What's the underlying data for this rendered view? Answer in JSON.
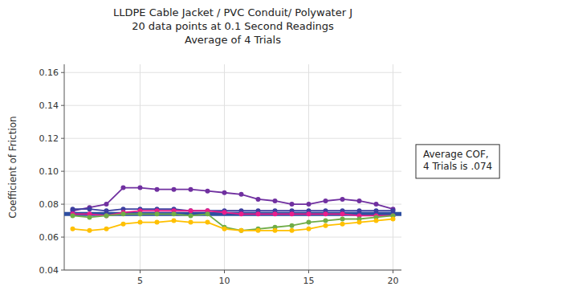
{
  "chart_data": {
    "type": "line",
    "title": "LLDPE Cable Jacket / PVC Conduit/ Polywater J\n20 data points at 0.1 Second Readings\nAverage of 4 Trials",
    "y_label": "Coefficient of Friction",
    "x": [
      1,
      2,
      3,
      4,
      5,
      6,
      7,
      8,
      9,
      10,
      11,
      12,
      13,
      14,
      15,
      16,
      17,
      18,
      19,
      20
    ],
    "xlim": [
      0.5,
      20.5
    ],
    "xticks": [
      5,
      10,
      15,
      20
    ],
    "ylim": [
      0.04,
      0.165
    ],
    "yticks": [
      0.04,
      0.06,
      0.08,
      {
        "value": 0.1,
        "label": "0.10"
      },
      0.12,
      0.14,
      0.16
    ],
    "grid": true,
    "marker": "circle",
    "average_line": {
      "value": 0.074,
      "color": "#2e4fa0"
    },
    "annotations": [
      "Average COF,\n4 Trials is .074"
    ],
    "series": [
      {
        "color": "#7030a0",
        "values": [
          0.076,
          0.078,
          0.08,
          0.09,
          0.09,
          0.089,
          0.089,
          0.089,
          0.088,
          0.087,
          0.086,
          0.083,
          0.082,
          0.08,
          0.08,
          0.082,
          0.083,
          0.082,
          0.08,
          0.077
        ]
      },
      {
        "color": "#3c3fa0",
        "values": [
          0.077,
          0.077,
          0.076,
          0.077,
          0.077,
          0.077,
          0.077,
          0.076,
          0.076,
          0.076,
          0.076,
          0.076,
          0.076,
          0.076,
          0.076,
          0.076,
          0.076,
          0.076,
          0.076,
          0.076
        ]
      },
      {
        "color": "#e91e8c",
        "values": [
          0.074,
          0.074,
          0.073,
          0.075,
          0.076,
          0.076,
          0.076,
          0.076,
          0.076,
          0.075,
          0.074,
          0.074,
          0.074,
          0.074,
          0.074,
          0.074,
          0.074,
          0.073,
          0.073,
          0.073
        ]
      },
      {
        "color": "#70ad47",
        "values": [
          0.073,
          0.072,
          0.073,
          0.074,
          0.074,
          0.074,
          0.074,
          0.073,
          0.074,
          0.066,
          0.064,
          0.065,
          0.066,
          0.067,
          0.069,
          0.07,
          0.071,
          0.071,
          0.072,
          0.073
        ]
      },
      {
        "color": "#ffc000",
        "values": [
          0.065,
          0.064,
          0.065,
          0.068,
          0.069,
          0.069,
          0.07,
          0.069,
          0.069,
          0.065,
          0.064,
          0.064,
          0.064,
          0.064,
          0.065,
          0.067,
          0.068,
          0.069,
          0.07,
          0.071
        ]
      }
    ]
  }
}
